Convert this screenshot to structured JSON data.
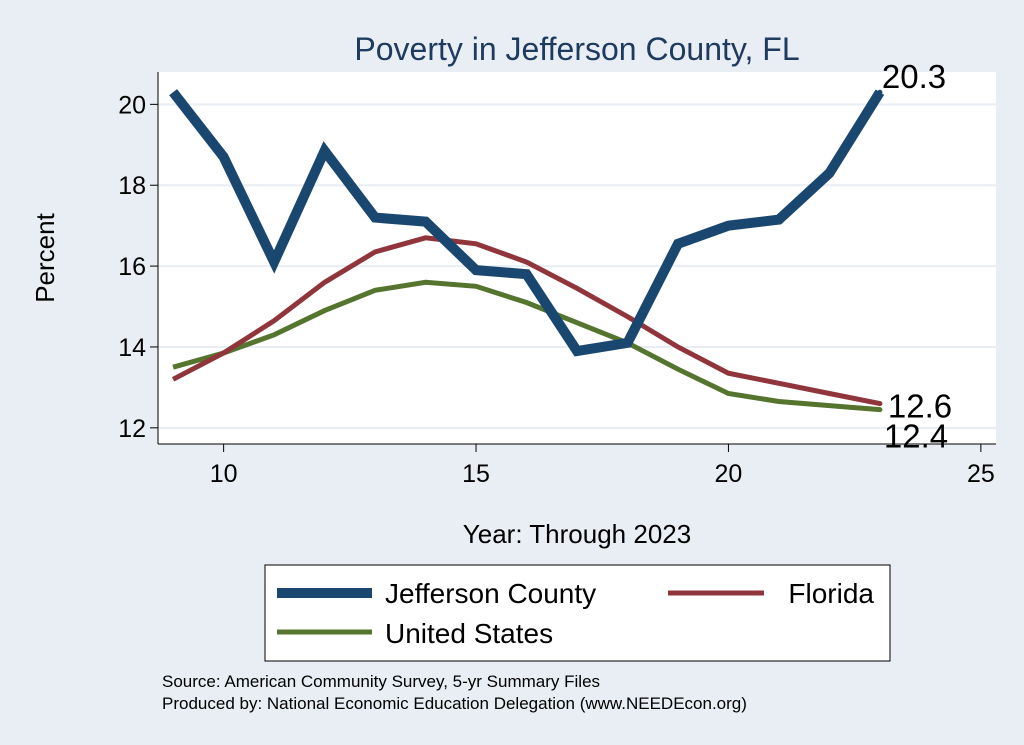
{
  "chart_data": {
    "type": "line",
    "title": "Poverty in Jefferson County, FL",
    "xlabel": "Year: Through 2023",
    "ylabel": "Percent",
    "xlim": [
      8.7,
      25.3
    ],
    "ylim": [
      11.6,
      20.8
    ],
    "xticks": [
      10,
      15,
      20,
      25
    ],
    "yticks": [
      12,
      14,
      16,
      18,
      20
    ],
    "grid": true,
    "legend_position": "bottom",
    "series": [
      {
        "name": "Jefferson County",
        "color": "#1a476f",
        "x": [
          9,
          10,
          11,
          12,
          13,
          14,
          15,
          16,
          17,
          18,
          19,
          20,
          21,
          22,
          23
        ],
        "values": [
          20.3,
          18.7,
          16.1,
          18.85,
          17.2,
          17.1,
          15.9,
          15.8,
          13.9,
          14.1,
          16.55,
          17.0,
          17.15,
          18.3,
          20.3
        ],
        "end_label": "20.3"
      },
      {
        "name": "Florida",
        "color": "#90353b",
        "x": [
          9,
          10,
          11,
          12,
          13,
          14,
          15,
          16,
          17,
          18,
          19,
          20,
          21,
          22,
          23
        ],
        "values": [
          13.2,
          13.85,
          14.65,
          15.6,
          16.35,
          16.7,
          16.55,
          16.1,
          15.45,
          14.75,
          14.0,
          13.35,
          13.1,
          12.85,
          12.6
        ],
        "end_label": "12.6"
      },
      {
        "name": "United States",
        "color": "#55752f",
        "x": [
          9,
          10,
          11,
          12,
          13,
          14,
          15,
          16,
          17,
          18,
          19,
          20,
          21,
          22,
          23
        ],
        "values": [
          13.5,
          13.85,
          14.3,
          14.9,
          15.4,
          15.6,
          15.5,
          15.1,
          14.6,
          14.1,
          13.45,
          12.85,
          12.65,
          12.55,
          12.45
        ],
        "end_label": "12.4"
      }
    ],
    "source_note": "Source: American Community Survey, 5-yr Summary Files",
    "producer_note": "Produced by: National Economic Education Delegation (www.NEEDEcon.org)"
  }
}
